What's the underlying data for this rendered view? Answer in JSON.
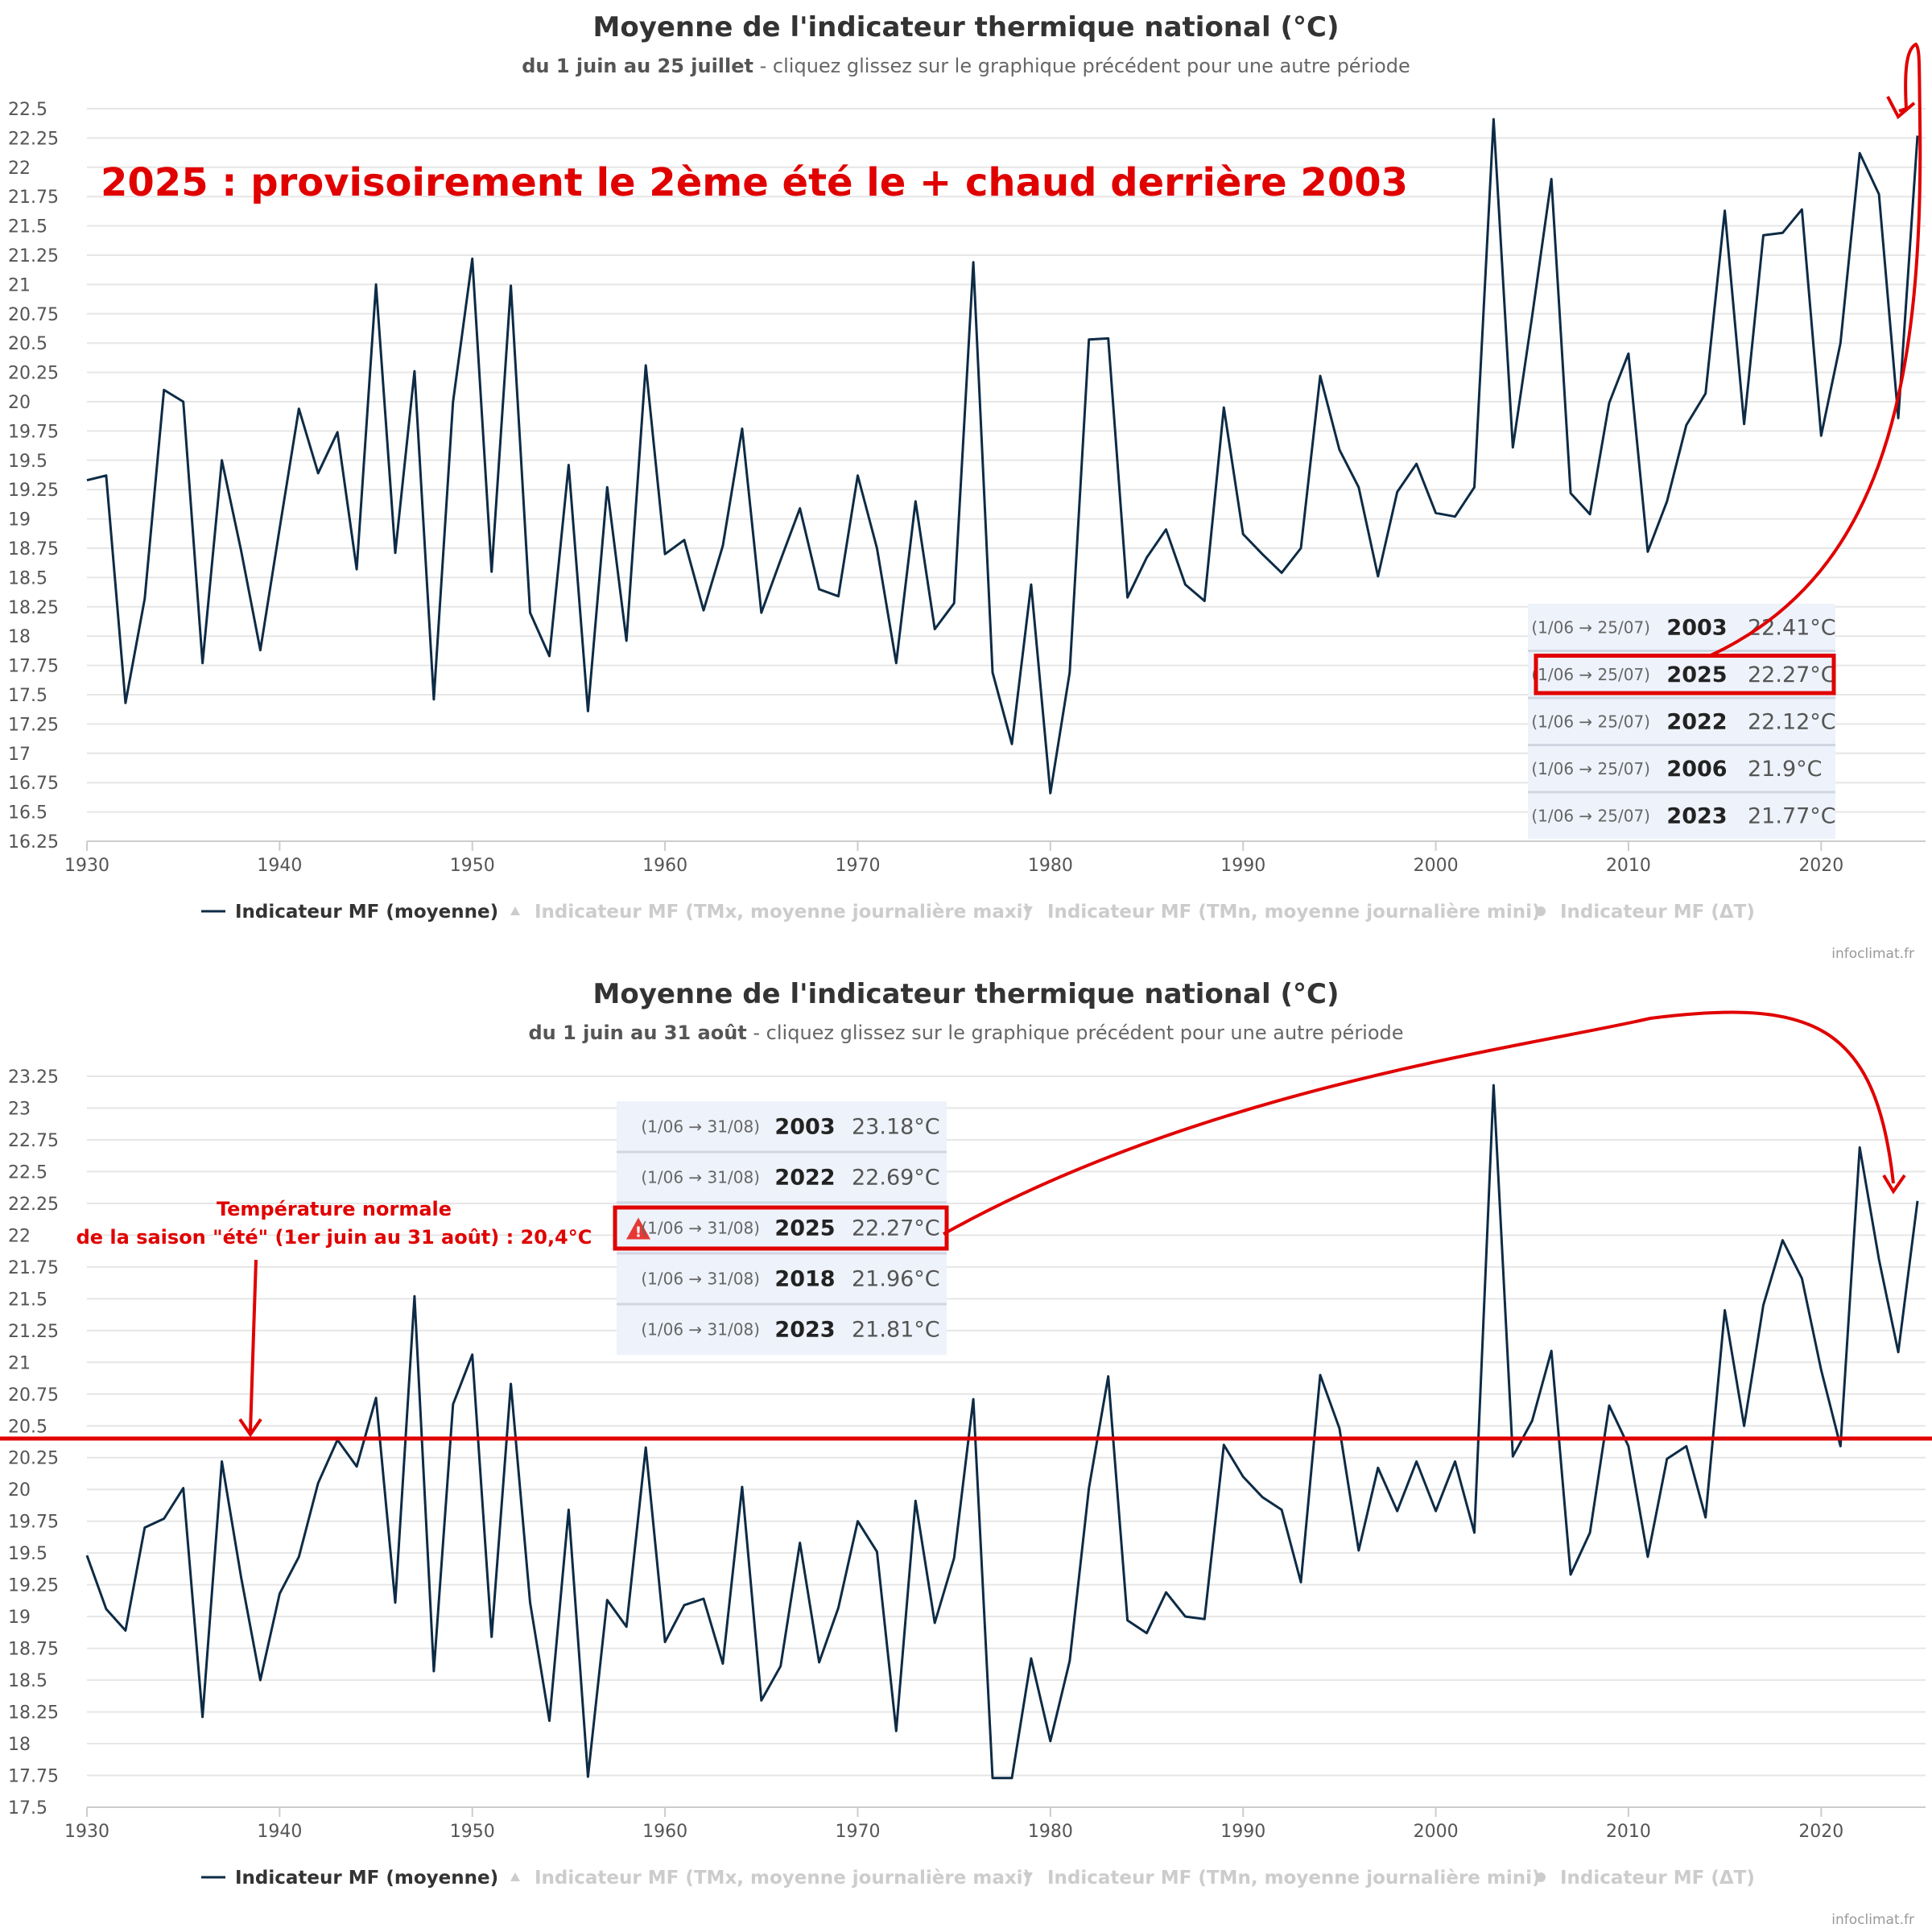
{
  "colors": {
    "series": "#0d2b45",
    "grid": "#e6e6e6",
    "annotation": "#e00000",
    "ranking_bg": "#eef2fa",
    "ranking_sep": "#d0d7e3"
  },
  "legend_icons": {
    "moyenne": "line-marker",
    "tmx": "triangle-up-icon",
    "tmn": "triangle-down-icon",
    "delta": "circle-icon"
  },
  "charts": [
    {
      "title": "Moyenne de l'indicateur thermique national (°C)",
      "subtitle_bold": "du 1 juin au 25 juillet",
      "subtitle_rest": " - cliquez glissez sur le graphique précédent pour une autre période",
      "legend": [
        "Indicateur MF (moyenne)",
        "Indicateur MF (TMx, moyenne journalière maxi)",
        "Indicateur MF (TMn, moyenne journalière mini)",
        "Indicateur MF (ΔT)"
      ],
      "credits": "infoclimat.fr",
      "headline": "2025 : provisoirement le 2ème été le + chaud derrière 2003",
      "ranking": [
        {
          "period": "(1/06 → 25/07)",
          "year": "2003",
          "value": "22.41°C"
        },
        {
          "period": "(1/06 → 25/07)",
          "year": "2025",
          "value": "22.27°C",
          "highlight": true
        },
        {
          "period": "(1/06 → 25/07)",
          "year": "2022",
          "value": "22.12°C"
        },
        {
          "period": "(1/06 → 25/07)",
          "year": "2006",
          "value": "21.9°C"
        },
        {
          "period": "(1/06 → 25/07)",
          "year": "2023",
          "value": "21.77°C"
        }
      ]
    },
    {
      "title": "Moyenne de l'indicateur thermique national (°C)",
      "subtitle_bold": "du 1 juin au 31 août",
      "subtitle_rest": " - cliquez glissez sur le graphique précédent pour une autre période",
      "legend": [
        "Indicateur MF (moyenne)",
        "Indicateur MF (TMx, moyenne journalière maxi)",
        "Indicateur MF (TMn, moyenne journalière mini)",
        "Indicateur MF (ΔT)"
      ],
      "credits": "infoclimat.fr",
      "annotation_line1": "Température normale",
      "annotation_line2": "de la saison \"été\" (1er juin au 31 août) : 20,4°C",
      "normal_value": 20.4,
      "ranking": [
        {
          "period": "(1/06 → 31/08)",
          "year": "2003",
          "value": "23.18°C"
        },
        {
          "period": "(1/06 → 31/08)",
          "year": "2022",
          "value": "22.69°C"
        },
        {
          "period": "(1/06 → 31/08)",
          "year": "2025",
          "value": "22.27°C",
          "highlight": true,
          "warning": true
        },
        {
          "period": "(1/06 → 31/08)",
          "year": "2018",
          "value": "21.96°C"
        },
        {
          "period": "(1/06 → 31/08)",
          "year": "2023",
          "value": "21.81°C"
        }
      ]
    }
  ],
  "chart_data": [
    {
      "type": "line",
      "title": "Moyenne de l'indicateur thermique national (°C)",
      "subtitle": "du 1 juin au 25 juillet",
      "xlim": [
        1930,
        2025
      ],
      "ylim": [
        16.25,
        22.5
      ],
      "x_ticks": [
        1930,
        1940,
        1950,
        1960,
        1970,
        1980,
        1990,
        2000,
        2010,
        2020
      ],
      "y_ticks": [
        "16.25",
        "16.5",
        "16.75",
        "17",
        "17.25",
        "17.5",
        "17.75",
        "18",
        "18.25",
        "18.5",
        "18.75",
        "19",
        "19.25",
        "19.5",
        "19.75",
        "20",
        "20.25",
        "20.5",
        "20.75",
        "21",
        "21.25",
        "21.5",
        "21.75",
        "22",
        "22.25",
        "22.5"
      ],
      "grid": true,
      "legend_position": "bottom",
      "series": [
        {
          "name": "Indicateur MF (moyenne)",
          "x_start": 1930,
          "values": [
            19.33,
            19.37,
            17.43,
            18.32,
            20.1,
            20.0,
            17.77,
            19.5,
            18.73,
            17.88,
            18.92,
            19.94,
            19.39,
            19.74,
            18.57,
            21.0,
            18.71,
            20.26,
            17.46,
            20.0,
            21.22,
            18.55,
            20.99,
            18.2,
            17.83,
            19.46,
            17.36,
            19.27,
            17.96,
            20.31,
            18.7,
            18.82,
            18.22,
            18.77,
            19.77,
            18.2,
            18.65,
            19.09,
            18.4,
            18.34,
            19.37,
            18.75,
            17.77,
            19.15,
            18.06,
            18.28,
            21.19,
            17.69,
            17.08,
            18.44,
            16.66,
            17.69,
            20.53,
            20.54,
            18.33,
            18.67,
            18.91,
            18.44,
            18.3,
            19.95,
            18.87,
            18.7,
            18.54,
            18.75,
            20.22,
            19.59,
            19.27,
            18.51,
            19.23,
            19.47,
            19.05,
            19.02,
            19.27,
            22.41,
            19.61,
            20.73,
            21.9,
            19.22,
            19.04,
            19.99,
            20.41,
            18.72,
            19.15,
            19.8,
            20.07,
            21.63,
            19.81,
            21.42,
            21.44,
            21.64,
            19.71,
            20.5,
            22.12,
            21.77,
            19.86,
            22.27
          ]
        }
      ]
    },
    {
      "type": "line",
      "title": "Moyenne de l'indicateur thermique national (°C)",
      "subtitle": "du 1 juin au 31 août",
      "xlim": [
        1930,
        2025
      ],
      "ylim": [
        17.5,
        23.25
      ],
      "x_ticks": [
        1930,
        1940,
        1950,
        1960,
        1970,
        1980,
        1990,
        2000,
        2010,
        2020
      ],
      "y_ticks": [
        "17.5",
        "17.75",
        "18",
        "18.25",
        "18.5",
        "18.75",
        "19",
        "19.25",
        "19.5",
        "19.75",
        "20",
        "20.25",
        "20.5",
        "20.75",
        "21",
        "21.25",
        "21.5",
        "21.75",
        "22",
        "22.25",
        "22.5",
        "22.75",
        "23",
        "23.25"
      ],
      "grid": true,
      "legend_position": "bottom",
      "series": [
        {
          "name": "Indicateur MF (moyenne)",
          "x_start": 1930,
          "values": [
            19.48,
            19.06,
            18.89,
            19.7,
            19.77,
            20.01,
            18.21,
            20.22,
            19.31,
            18.5,
            19.18,
            19.47,
            20.05,
            20.39,
            20.18,
            20.72,
            19.11,
            21.52,
            18.57,
            20.67,
            21.06,
            18.84,
            20.83,
            19.11,
            18.18,
            19.84,
            17.74,
            19.13,
            18.92,
            20.33,
            18.8,
            19.09,
            19.14,
            18.63,
            20.02,
            18.34,
            18.61,
            19.58,
            18.64,
            19.07,
            19.75,
            19.51,
            18.1,
            19.91,
            18.95,
            19.46,
            20.71,
            17.73,
            17.73,
            18.67,
            18.02,
            18.65,
            20.01,
            20.89,
            18.97,
            18.87,
            19.19,
            19.0,
            18.98,
            20.35,
            20.1,
            19.94,
            19.84,
            19.27,
            20.9,
            20.48,
            19.52,
            20.17,
            19.83,
            20.22,
            19.83,
            20.22,
            19.66,
            23.18,
            20.26,
            20.54,
            21.09,
            19.33,
            19.66,
            20.66,
            20.34,
            19.47,
            20.24,
            20.34,
            19.78,
            21.41,
            20.5,
            21.45,
            21.96,
            21.66,
            20.94,
            20.34,
            22.69,
            21.81,
            21.08,
            22.27
          ]
        }
      ]
    }
  ]
}
